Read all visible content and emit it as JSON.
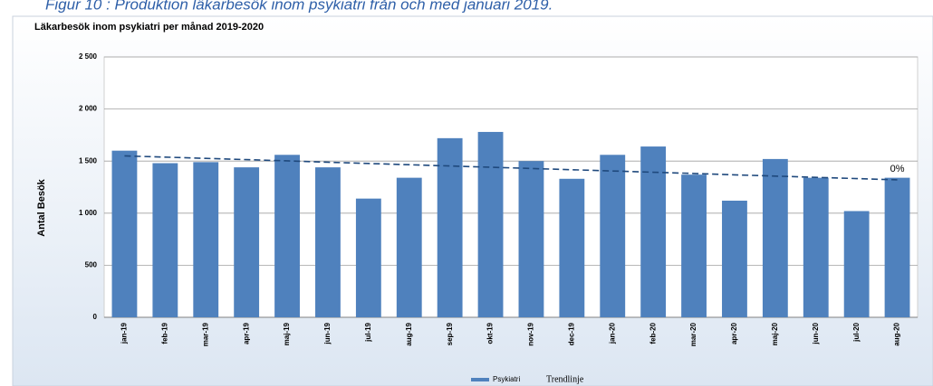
{
  "caption": "Figur 10 : Produktion läkarbesök inom psykiatri från och med januari 2019.",
  "chart_data": {
    "type": "bar",
    "title": "Läkarbesök inom psykiatri per månad 2019-2020",
    "y_label": "Antal Besök",
    "categories": [
      "jan-19",
      "feb-19",
      "mar-19",
      "apr-19",
      "maj-19",
      "jun-19",
      "jul-19",
      "aug-19",
      "sep-19",
      "okt-19",
      "nov-19",
      "dec-19",
      "jan-20",
      "feb-20",
      "mar-20",
      "apr-20",
      "maj-20",
      "jun-20",
      "jul-20",
      "aug-20"
    ],
    "series": [
      {
        "name": "Psykiatri",
        "color": "#4f81bd",
        "values": [
          1600,
          1480,
          1490,
          1440,
          1560,
          1440,
          1140,
          1340,
          1720,
          1780,
          1500,
          1330,
          1560,
          1640,
          1370,
          1120,
          1520,
          1340,
          1020,
          1340
        ]
      },
      {
        "name": "Trendlinje",
        "color": "#1f497d",
        "style": "dashed",
        "values": [
          1550,
          1538,
          1526,
          1514,
          1502,
          1489,
          1477,
          1465,
          1453,
          1441,
          1429,
          1417,
          1405,
          1393,
          1381,
          1368,
          1356,
          1344,
          1332,
          1320
        ]
      }
    ],
    "annotation": "0%",
    "ylim": [
      0,
      2500
    ],
    "yticks": [
      0,
      500,
      {
        "value": 1000,
        "label": "1 000"
      },
      {
        "value": 1500,
        "label": "1 500"
      },
      {
        "value": 2000,
        "label": "2 000"
      },
      {
        "value": 2500,
        "label": "2 500"
      }
    ],
    "grid": true
  }
}
